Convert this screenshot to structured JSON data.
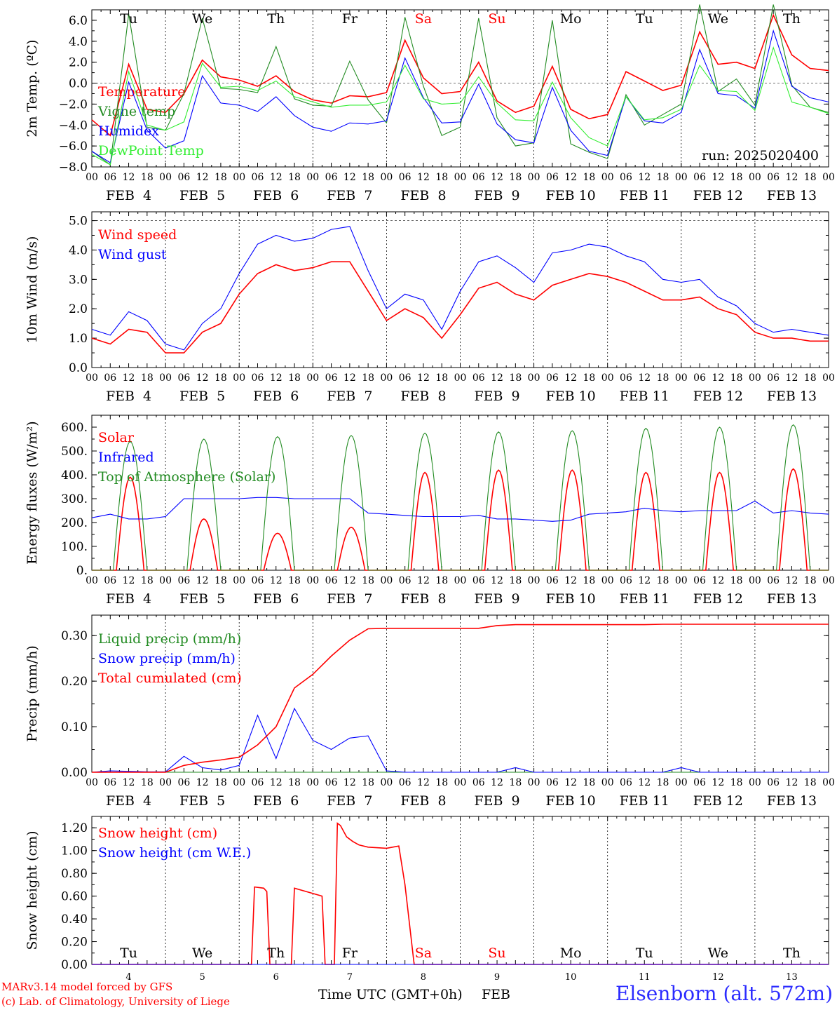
{
  "footer": {
    "model_line": "MARv3.14 model forced by GFS",
    "credit_line": "(c) Lab. of Climatology, University of Liege",
    "station": "Elsenborn (alt. 572m)",
    "xaxis_title_left": "Time UTC (GMT+0h)",
    "xaxis_title_month": "FEB"
  },
  "colors": {
    "red": "#ff0000",
    "green": "#228b22",
    "blue": "#0000ff",
    "lightgreen": "#33ee33",
    "black": "#000000"
  },
  "time_axis": {
    "hour_ticks": [
      "00",
      "06",
      "12",
      "18"
    ],
    "final_tick": "00",
    "dates": [
      "FEB  4",
      "FEB  5",
      "FEB  6",
      "FEB  7",
      "FEB  8",
      "FEB  9",
      "FEB 10",
      "FEB 11",
      "FEB 12",
      "FEB 13"
    ],
    "weekdays": [
      "Tu",
      "We",
      "Th",
      "Fr",
      "Sa",
      "Su",
      "Mo",
      "Tu",
      "We",
      "Th"
    ],
    "weekend": [
      false,
      false,
      false,
      false,
      true,
      true,
      false,
      false,
      false,
      false
    ],
    "day_numbers": [
      "4",
      "5",
      "6",
      "7",
      "8",
      "9",
      "10",
      "11",
      "12",
      "13"
    ]
  },
  "chart_data": [
    {
      "type": "line",
      "ylabel": "2m Temp. (ºC)",
      "ylim": [
        -8,
        7
      ],
      "yticks": [
        "6.0",
        "4.0",
        "2.0",
        "0.0",
        "−2.0",
        "−4.0",
        "−6.0",
        "−8.0"
      ],
      "ytick_values": [
        6,
        4,
        2,
        0,
        -2,
        -4,
        -6,
        -8
      ],
      "ref_line": 0,
      "annotation": "run: 2025020400",
      "x_hours": [
        0,
        6,
        12,
        18,
        24,
        30,
        36,
        42,
        48,
        54,
        60,
        66,
        72,
        78,
        84,
        90,
        96,
        102,
        108,
        114,
        120,
        126,
        132,
        138,
        144,
        150,
        156,
        162,
        168,
        174,
        180,
        186,
        192,
        198,
        204,
        210,
        216,
        222,
        228,
        234,
        240
      ],
      "series": [
        {
          "name": "Temperature",
          "color": "red",
          "values": [
            -3.5,
            -5.0,
            1.8,
            -2.5,
            -2.8,
            -1.0,
            2.2,
            0.6,
            0.3,
            -0.3,
            0.7,
            -0.8,
            -1.6,
            -1.9,
            -1.2,
            -1.3,
            -0.9,
            4.1,
            0.5,
            -1.0,
            -0.8,
            2.0,
            -1.7,
            -2.8,
            -2.2,
            1.6,
            -2.5,
            -3.4,
            -3.0,
            1.1,
            0.2,
            -0.7,
            -0.2,
            4.9,
            1.8,
            2.0,
            1.4,
            6.5,
            2.7,
            1.4,
            1.2
          ]
        },
        {
          "name": "Vigne temp",
          "color": "green",
          "values": [
            -6.5,
            -7.8,
            6.6,
            -4.2,
            -4.5,
            -1.0,
            6.2,
            -0.5,
            -0.6,
            -0.9,
            3.5,
            -1.5,
            -2.1,
            -2.2,
            2.1,
            -1.6,
            -3.8,
            6.3,
            -0.3,
            -5.0,
            -4.2,
            6.2,
            -3.3,
            -6.0,
            -5.7,
            6.0,
            -5.8,
            -6.6,
            -7.2,
            -1.1,
            -4.0,
            -3.0,
            -2.0,
            7.5,
            -0.8,
            0.4,
            -2.1,
            7.5,
            -0.2,
            -2.3,
            -2.8
          ]
        },
        {
          "name": "Humidex",
          "color": "blue",
          "values": [
            -6.5,
            -7.6,
            0.1,
            -4.5,
            -6.2,
            -5.5,
            0.7,
            -1.9,
            -2.1,
            -2.7,
            -1.3,
            -3.1,
            -4.2,
            -4.6,
            -3.8,
            -3.9,
            -3.6,
            2.4,
            -1.4,
            -3.8,
            -3.7,
            -0.1,
            -3.9,
            -5.4,
            -5.7,
            -0.4,
            -4.5,
            -6.5,
            -6.9,
            -1.3,
            -3.6,
            -3.8,
            -2.8,
            3.2,
            -1.0,
            -1.2,
            -2.4,
            5.0,
            -0.3,
            -1.4,
            -1.8
          ]
        },
        {
          "name": "DewPoint Temp",
          "color": "lightgreen",
          "values": [
            -6.8,
            -7.8,
            1.1,
            -4.0,
            -4.5,
            -3.7,
            1.9,
            -0.4,
            -0.3,
            -0.7,
            0.2,
            -1.3,
            -1.8,
            -2.3,
            -2.1,
            -2.1,
            -1.8,
            1.7,
            -1.5,
            -2.0,
            -1.9,
            0.6,
            -1.9,
            -3.5,
            -3.6,
            0.1,
            -3.3,
            -5.2,
            -6.0,
            -1.3,
            -3.5,
            -3.3,
            -2.5,
            1.7,
            -0.7,
            -0.8,
            -2.6,
            3.4,
            -1.8,
            -2.3,
            -2.9
          ]
        }
      ]
    },
    {
      "type": "line",
      "ylabel": "10m Wind (m/s)",
      "ylim": [
        0,
        5.3
      ],
      "yticks": [
        "5.0",
        "4.0",
        "3.0",
        "2.0",
        "1.0",
        "0.0"
      ],
      "ytick_values": [
        5,
        4,
        3,
        2,
        1,
        0
      ],
      "ref_line": 5,
      "x_hours": [
        0,
        6,
        12,
        18,
        24,
        30,
        36,
        42,
        48,
        54,
        60,
        66,
        72,
        78,
        84,
        90,
        96,
        102,
        108,
        114,
        120,
        126,
        132,
        138,
        144,
        150,
        156,
        162,
        168,
        174,
        180,
        186,
        192,
        198,
        204,
        210,
        216,
        222,
        228,
        234,
        240
      ],
      "series": [
        {
          "name": "Wind speed",
          "color": "red",
          "values": [
            1.0,
            0.8,
            1.3,
            1.2,
            0.5,
            0.5,
            1.2,
            1.5,
            2.5,
            3.2,
            3.5,
            3.3,
            3.4,
            3.6,
            3.6,
            2.6,
            1.6,
            2.0,
            1.7,
            1.0,
            1.8,
            2.7,
            2.9,
            2.5,
            2.3,
            2.8,
            3.0,
            3.2,
            3.1,
            2.9,
            2.6,
            2.3,
            2.3,
            2.4,
            2.0,
            1.8,
            1.2,
            1.0,
            1.0,
            0.9,
            0.9
          ]
        },
        {
          "name": "Wind gust",
          "color": "blue",
          "values": [
            1.3,
            1.1,
            1.9,
            1.6,
            0.8,
            0.6,
            1.5,
            2.0,
            3.2,
            4.2,
            4.5,
            4.3,
            4.4,
            4.7,
            4.8,
            3.3,
            2.0,
            2.5,
            2.3,
            1.3,
            2.6,
            3.6,
            3.8,
            3.4,
            2.9,
            3.9,
            4.0,
            4.2,
            4.1,
            3.8,
            3.6,
            3.0,
            2.9,
            3.0,
            2.4,
            2.1,
            1.5,
            1.2,
            1.3,
            1.2,
            1.1
          ]
        }
      ]
    },
    {
      "type": "line",
      "ylabel": "Energy fluxes (W/m²)",
      "ylim": [
        0,
        650
      ],
      "yticks": [
        "600.",
        "500.",
        "400.",
        "300.",
        "200.",
        "100.",
        "0."
      ],
      "ytick_values": [
        600,
        500,
        400,
        300,
        200,
        100,
        0
      ],
      "x_hours": [
        0,
        6,
        12,
        18,
        24,
        30,
        36,
        42,
        48,
        54,
        60,
        66,
        72,
        78,
        84,
        90,
        96,
        102,
        108,
        114,
        120,
        126,
        132,
        138,
        144,
        150,
        156,
        162,
        168,
        174,
        180,
        186,
        192,
        198,
        204,
        210,
        216,
        222,
        228,
        234,
        240
      ],
      "series": [
        {
          "name": "Solar",
          "color": "red",
          "peaks": [
            {
              "center_h": 12.5,
              "value": 390
            },
            {
              "center_h": 36.5,
              "value": 215
            },
            {
              "center_h": 60.5,
              "value": 155
            },
            {
              "center_h": 84.5,
              "value": 180
            },
            {
              "center_h": 108.5,
              "value": 410
            },
            {
              "center_h": 132.5,
              "value": 420
            },
            {
              "center_h": 156.5,
              "value": 420
            },
            {
              "center_h": 180.5,
              "value": 410
            },
            {
              "center_h": 204.5,
              "value": 410
            },
            {
              "center_h": 228.5,
              "value": 425
            }
          ],
          "halfwidth_h": 4.5
        },
        {
          "name": "Infrared",
          "color": "blue",
          "values": [
            220,
            235,
            215,
            215,
            225,
            300,
            300,
            300,
            300,
            305,
            305,
            300,
            300,
            300,
            300,
            240,
            235,
            230,
            225,
            225,
            225,
            230,
            215,
            215,
            210,
            205,
            210,
            235,
            240,
            245,
            260,
            250,
            245,
            250,
            250,
            250,
            290,
            240,
            250,
            240,
            235
          ]
        },
        {
          "name": "Top of Atmosphere (Solar)",
          "color": "green",
          "peaks": [
            {
              "center_h": 12.5,
              "value": 540
            },
            {
              "center_h": 36.5,
              "value": 550
            },
            {
              "center_h": 60.5,
              "value": 560
            },
            {
              "center_h": 84.5,
              "value": 565
            },
            {
              "center_h": 108.5,
              "value": 575
            },
            {
              "center_h": 132.5,
              "value": 580
            },
            {
              "center_h": 156.5,
              "value": 585
            },
            {
              "center_h": 180.5,
              "value": 595
            },
            {
              "center_h": 204.5,
              "value": 600
            },
            {
              "center_h": 228.5,
              "value": 610
            }
          ],
          "halfwidth_h": 5.5
        }
      ]
    },
    {
      "type": "line",
      "ylabel": "Precip (mm/h)",
      "ylim": [
        0,
        0.345
      ],
      "yticks": [
        "0.30",
        "0.20",
        "0.10",
        "0.00"
      ],
      "ytick_values": [
        0.3,
        0.2,
        0.1,
        0
      ],
      "x_hours": [
        0,
        6,
        12,
        18,
        24,
        30,
        36,
        42,
        48,
        54,
        60,
        66,
        72,
        78,
        84,
        90,
        96,
        102,
        108,
        114,
        120,
        126,
        132,
        138,
        144,
        150,
        156,
        162,
        168,
        174,
        180,
        186,
        192,
        198,
        204,
        210,
        216,
        222,
        228,
        234,
        240
      ],
      "series": [
        {
          "name": "Liquid precip (mm/h)",
          "color": "green",
          "values": [
            0,
            0,
            0,
            0,
            0,
            0,
            0,
            0,
            0,
            0,
            0,
            0,
            0,
            0,
            0,
            0,
            0,
            0,
            0,
            0,
            0,
            0,
            0,
            0,
            0,
            0,
            0,
            0,
            0,
            0,
            0,
            0,
            0,
            0,
            0,
            0,
            0,
            0,
            0,
            0,
            0
          ]
        },
        {
          "name": "Snow precip (mm/h)",
          "color": "blue",
          "values": [
            0,
            0.003,
            0.002,
            0.001,
            0.001,
            0.035,
            0.01,
            0.005,
            0.015,
            0.125,
            0.03,
            0.14,
            0.07,
            0.05,
            0.075,
            0.08,
            0.003,
            0,
            0,
            0,
            0,
            0,
            0,
            0.01,
            0,
            0,
            0,
            0,
            0,
            0,
            0,
            0,
            0.01,
            0,
            0,
            0,
            0,
            0,
            0,
            0,
            0
          ]
        },
        {
          "name": "Total cumulated (cm)",
          "color": "red",
          "values": [
            0,
            0,
            0,
            0,
            0,
            0.015,
            0.022,
            0.027,
            0.033,
            0.06,
            0.1,
            0.185,
            0.215,
            0.255,
            0.29,
            0.315,
            0.316,
            0.316,
            0.316,
            0.316,
            0.316,
            0.316,
            0.322,
            0.324,
            0.324,
            0.324,
            0.324,
            0.324,
            0.324,
            0.324,
            0.324,
            0.325,
            0.325,
            0.325,
            0.325,
            0.325,
            0.325,
            0.325,
            0.325,
            0.325,
            0.325
          ]
        }
      ]
    },
    {
      "type": "line",
      "ylabel": "Snow height (cm)",
      "ylim": [
        0,
        1.3
      ],
      "yticks": [
        "1.20",
        "1.00",
        "0.80",
        "0.60",
        "0.40",
        "0.20",
        "0.00"
      ],
      "ytick_values": [
        1.2,
        1.0,
        0.8,
        0.6,
        0.4,
        0.2,
        0
      ],
      "x_hours": [
        0,
        52,
        53,
        56,
        57,
        58,
        65,
        66,
        75,
        76,
        79,
        80,
        81,
        83,
        85,
        87,
        90,
        96,
        100,
        102,
        105,
        240
      ],
      "series": [
        {
          "name": "Snow height (cm)",
          "color": "red",
          "values": [
            0,
            0,
            0.68,
            0.67,
            0.64,
            0,
            0,
            0.67,
            0.6,
            0,
            0,
            1.24,
            1.22,
            1.12,
            1.08,
            1.05,
            1.03,
            1.02,
            1.04,
            0.7,
            0,
            0
          ]
        },
        {
          "name": "Snow height (cm W.E.)",
          "color": "blue",
          "values": [
            0,
            0,
            0,
            0,
            0,
            0,
            0,
            0,
            0,
            0,
            0,
            0,
            0,
            0,
            0,
            0,
            0,
            0,
            0,
            0,
            0,
            0
          ]
        }
      ]
    }
  ]
}
